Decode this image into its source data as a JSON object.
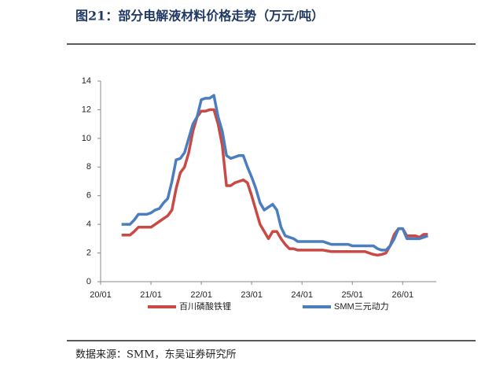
{
  "chart_data": {
    "type": "line",
    "title": "图21：部分电解液材料价格走势（万元/吨）",
    "source": "数据来源：SMM，东吴证券研究所",
    "x": [
      "20/06",
      "20/07",
      "20/08",
      "20/09",
      "20/10",
      "20/11",
      "20/12",
      "21/01",
      "21/02",
      "21/03",
      "21/04",
      "21/05",
      "21/06",
      "21/07",
      "21/08",
      "21/09",
      "21/10",
      "21/11",
      "21/12",
      "22/01",
      "22/02",
      "22/03",
      "22/04",
      "22/05",
      "22/06",
      "22/07",
      "22/08",
      "22/09",
      "22/10",
      "22/11",
      "22/12",
      "23/01",
      "23/02",
      "23/03",
      "23/04",
      "23/05",
      "23/06",
      "23/07",
      "23/08",
      "23/09",
      "23/10",
      "23/11",
      "23/12",
      "24/01",
      "24/02",
      "24/03",
      "24/04",
      "24/05",
      "24/06",
      "24/07",
      "24/08",
      "24/09",
      "24/10",
      "24/11",
      "24/12",
      "25/01",
      "25/02",
      "25/03",
      "25/04",
      "25/05",
      "25/06",
      "25/07",
      "25/08",
      "25/09",
      "25/10",
      "25/11",
      "25/12",
      "26/01",
      "26/02",
      "26/03",
      "26/04",
      "26/05",
      "26/06",
      "26/07"
    ],
    "series": [
      {
        "name": "百川磷酸铁锂",
        "color": "#c94a45",
        "values": [
          3.25,
          3.25,
          3.25,
          3.5,
          3.8,
          3.8,
          3.8,
          3.8,
          4.0,
          4.2,
          4.4,
          4.6,
          5.0,
          6.5,
          7.6,
          8.0,
          9.0,
          10.5,
          11.5,
          11.9,
          11.9,
          12.0,
          12.0,
          11.0,
          9.5,
          6.7,
          6.7,
          6.9,
          7.0,
          7.1,
          6.9,
          6.0,
          5.0,
          4.0,
          3.5,
          3.0,
          3.5,
          3.5,
          3.0,
          2.6,
          2.3,
          2.3,
          2.2,
          2.2,
          2.2,
          2.2,
          2.2,
          2.2,
          2.2,
          2.15,
          2.1,
          2.1,
          2.1,
          2.1,
          2.1,
          2.1,
          2.1,
          2.1,
          2.1,
          2.0,
          1.9,
          1.85,
          1.9,
          2.0,
          2.5,
          3.3,
          3.7,
          3.7,
          3.2,
          3.2,
          3.2,
          3.1,
          3.3,
          3.3
        ]
      },
      {
        "name": "SMM三元动力",
        "color": "#4a7ebf",
        "values": [
          4.0,
          4.0,
          4.0,
          4.3,
          4.7,
          4.7,
          4.7,
          4.8,
          5.0,
          5.1,
          5.5,
          5.8,
          7.0,
          8.5,
          8.6,
          9.0,
          10.0,
          11.0,
          11.5,
          12.7,
          12.8,
          12.8,
          13.0,
          11.5,
          10.5,
          8.8,
          8.6,
          8.7,
          8.8,
          8.8,
          8.0,
          7.3,
          6.5,
          5.5,
          5.0,
          5.2,
          5.4,
          5.0,
          3.8,
          3.2,
          3.1,
          3.0,
          2.8,
          2.8,
          2.8,
          2.8,
          2.8,
          2.8,
          2.8,
          2.7,
          2.6,
          2.6,
          2.6,
          2.6,
          2.6,
          2.5,
          2.5,
          2.5,
          2.5,
          2.5,
          2.5,
          2.3,
          2.2,
          2.2,
          2.5,
          3.0,
          3.7,
          3.7,
          3.0,
          3.0,
          3.0,
          3.0,
          3.1,
          3.2
        ]
      }
    ],
    "xlim": [
      "20/01",
      "26/09"
    ],
    "xticks": [
      "20/01",
      "21/01",
      "22/01",
      "23/01",
      "24/01",
      "25/01",
      "26/01"
    ],
    "ylim": [
      0,
      14
    ],
    "yticks": [
      0,
      2,
      4,
      6,
      8,
      10,
      12,
      14
    ],
    "grid": false,
    "legend": "bottom"
  }
}
